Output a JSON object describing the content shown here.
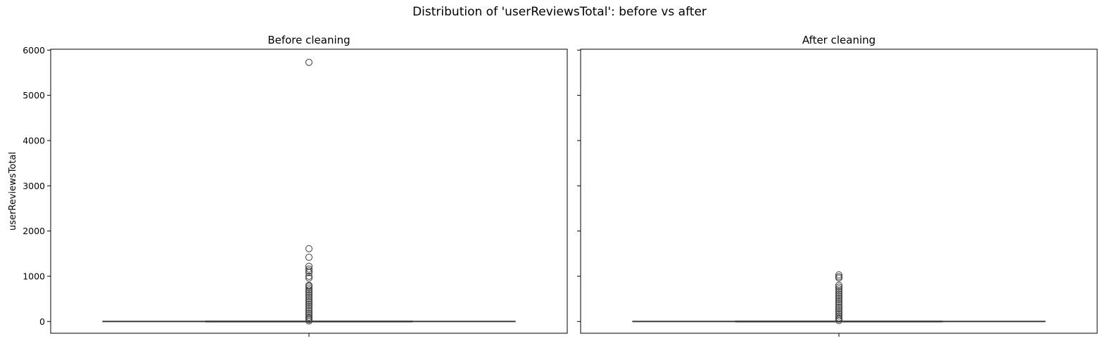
{
  "figure": {
    "title": "Distribution of 'userReviewsTotal': before vs after"
  },
  "chart_data": [
    {
      "type": "box",
      "title": "Before cleaning",
      "xlabel": "",
      "ylabel": "userReviewsTotal",
      "ylim": [
        -260,
        6020
      ],
      "yticks": [
        0,
        1000,
        2000,
        3000,
        4000,
        5000,
        6000
      ],
      "ytick_labels": [
        "0",
        "1000",
        "2000",
        "3000",
        "4000",
        "5000",
        "6000"
      ],
      "grid": false,
      "box": {
        "q1": 0,
        "median": 0,
        "q3": 0,
        "whisker_low": 0,
        "whisker_high": 0
      },
      "outliers": [
        5730,
        1610,
        1420,
        1220,
        1160,
        1120,
        1080,
        1000,
        960,
        800,
        780,
        740,
        700,
        660,
        620,
        580,
        540,
        500,
        460,
        420,
        380,
        340,
        300,
        260,
        220,
        180,
        140,
        100,
        70,
        40,
        10
      ]
    },
    {
      "type": "box",
      "title": "After cleaning",
      "xlabel": "",
      "ylabel": "",
      "ylim": [
        -260,
        6020
      ],
      "yticks": [
        0,
        1000,
        2000,
        3000,
        4000,
        5000,
        6000
      ],
      "ytick_labels": [
        "",
        "",
        "",
        "",
        "",
        "",
        ""
      ],
      "grid": false,
      "box": {
        "q1": 0,
        "median": 0,
        "q3": 0,
        "whisker_low": 0,
        "whisker_high": 0
      },
      "outliers": [
        1030,
        990,
        960,
        800,
        760,
        720,
        680,
        640,
        600,
        560,
        520,
        480,
        440,
        400,
        360,
        320,
        280,
        240,
        200,
        160,
        120,
        80,
        50,
        20
      ]
    }
  ],
  "colors": {
    "box_line": "#3d3d3d",
    "box_fill": "#3274a1",
    "outlier_edge": "#3d3d3d"
  }
}
